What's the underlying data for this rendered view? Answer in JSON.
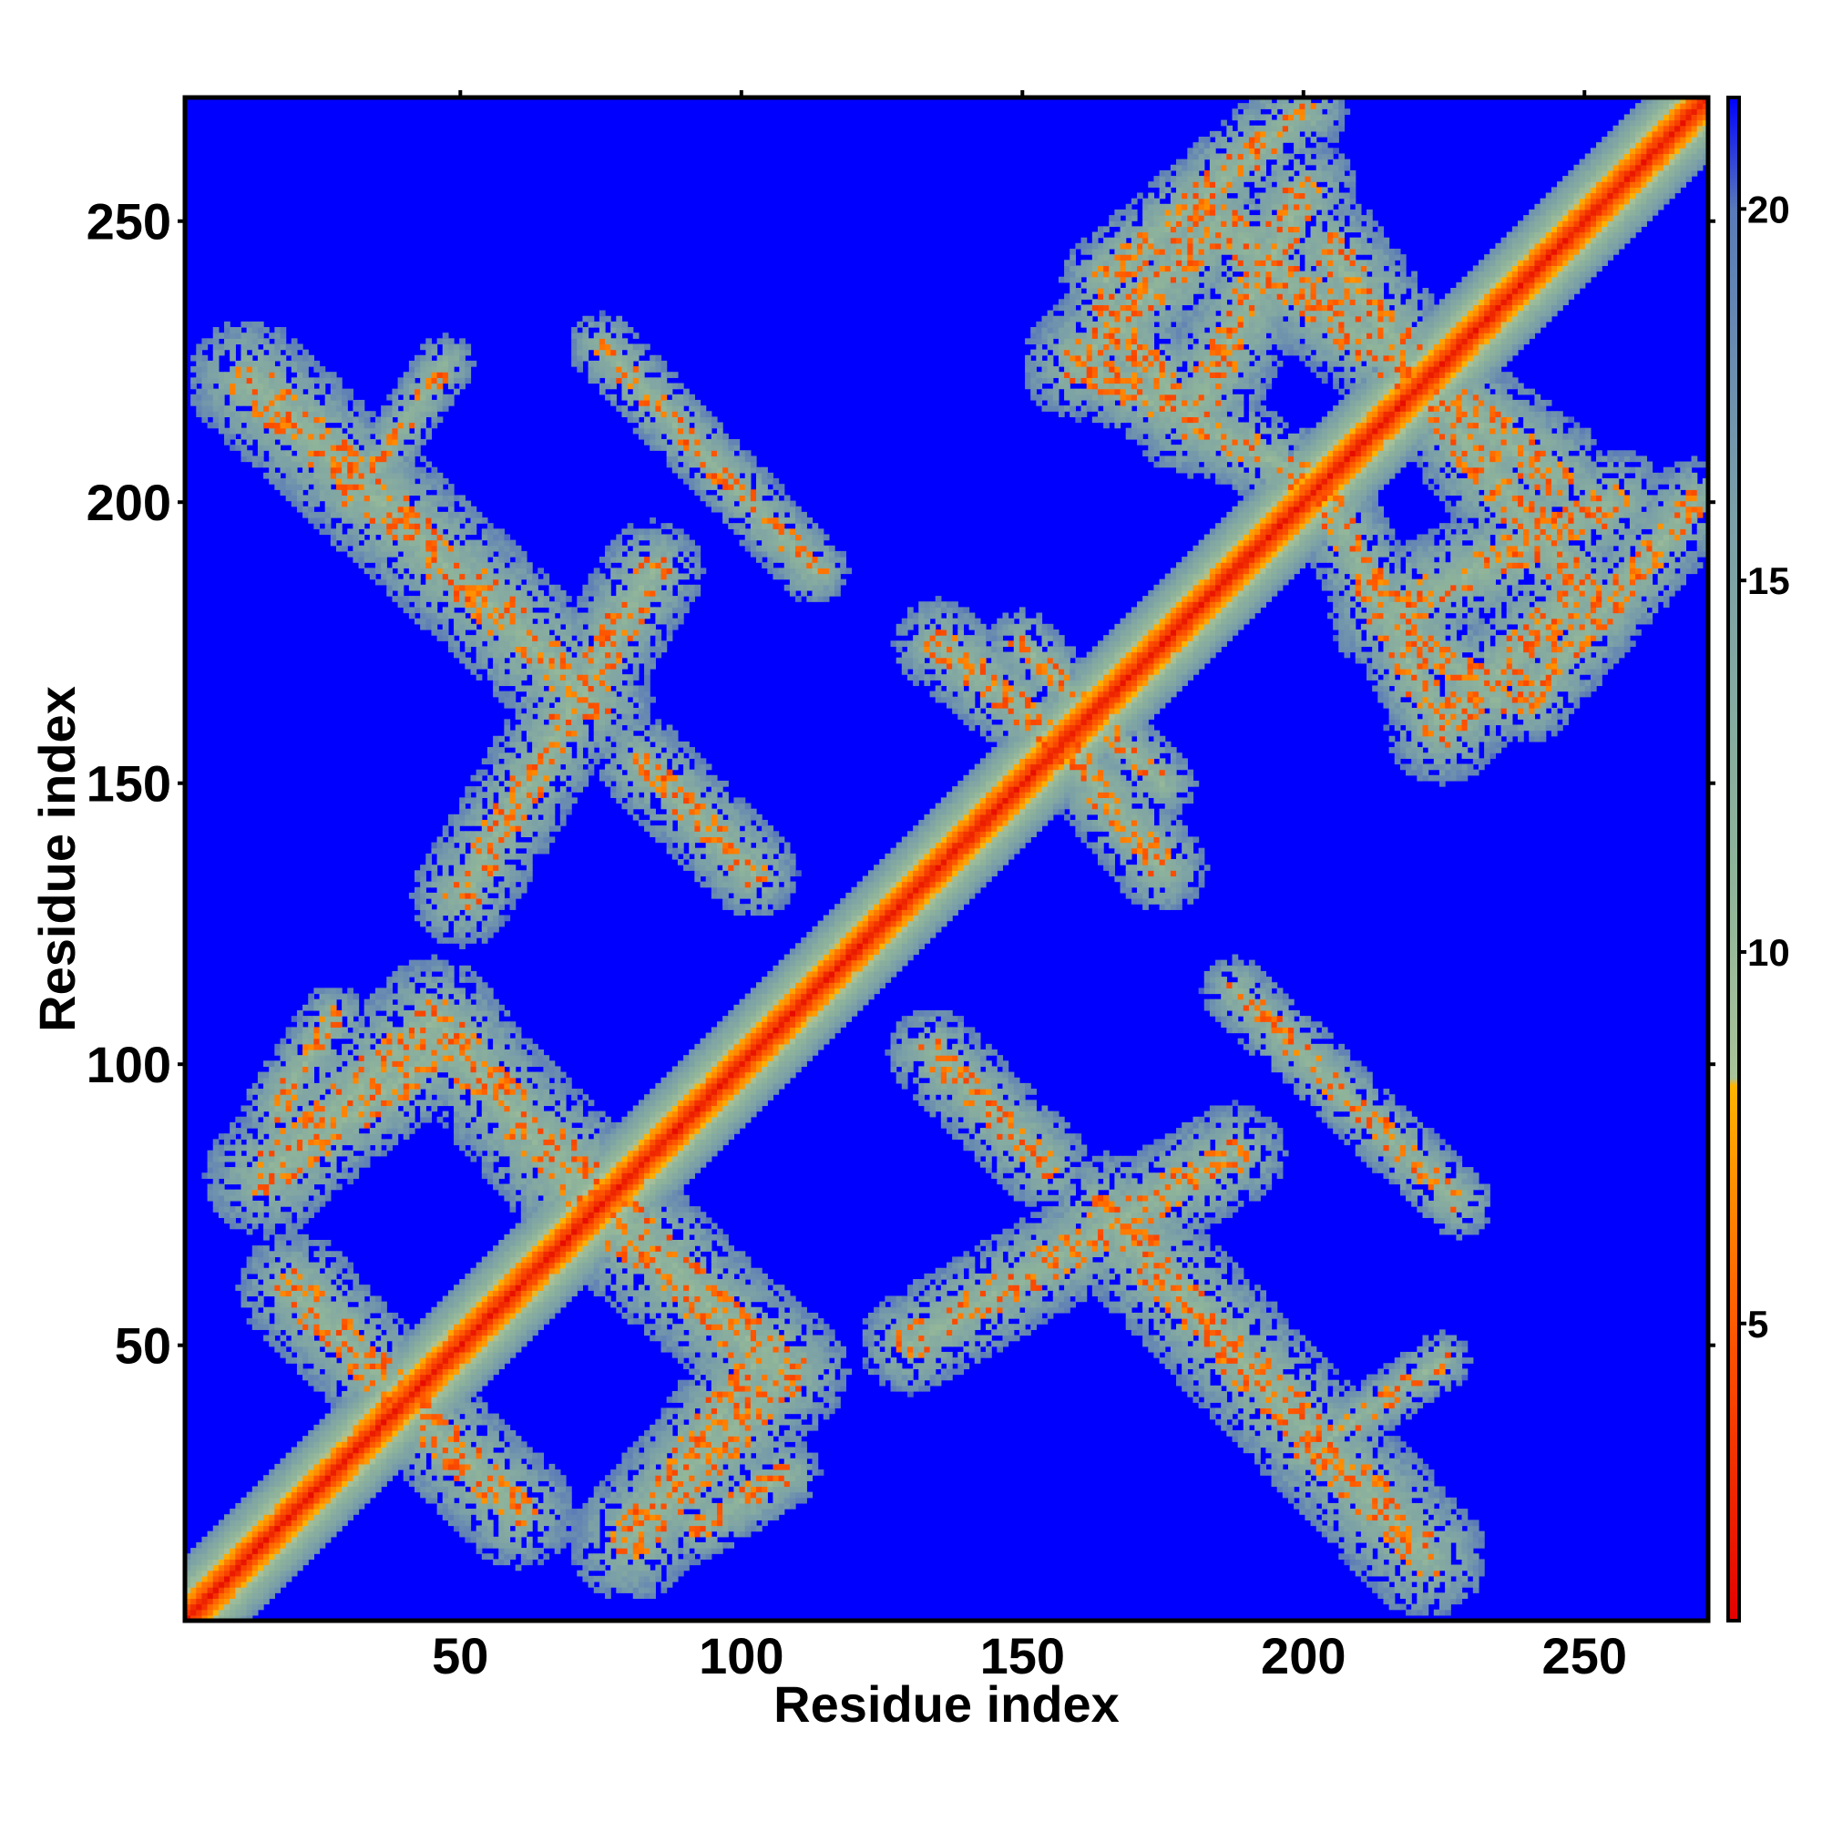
{
  "chart_data": {
    "type": "heatmap",
    "title": "",
    "xlabel": "Residue index",
    "ylabel": "Residue index",
    "xlim": [
      1,
      272
    ],
    "ylim": [
      1,
      272
    ],
    "x_ticks": [
      50,
      100,
      150,
      200,
      250
    ],
    "y_ticks": [
      50,
      100,
      150,
      200,
      250
    ],
    "x_tick_labels": [
      "50",
      "100",
      "150",
      "200",
      "250"
    ],
    "y_tick_labels": [
      "50",
      "100",
      "150",
      "200",
      "250"
    ],
    "colorbar": {
      "ticks": [
        5,
        10,
        15,
        20
      ],
      "tick_labels": [
        "5",
        "10",
        "15",
        "20"
      ],
      "range": [
        1,
        21.5
      ],
      "stops": [
        {
          "value": 1,
          "color": "#e30000"
        },
        {
          "value": 5,
          "color": "#ff5a00"
        },
        {
          "value": 8.2,
          "color": "#ffb400"
        },
        {
          "value": 8.3,
          "color": "#a9c39a"
        },
        {
          "value": 11,
          "color": "#8fb49a"
        },
        {
          "value": 16,
          "color": "#7a9fa8"
        },
        {
          "value": 20,
          "color": "#5a7ab8"
        },
        {
          "value": 21.5,
          "color": "#0000ff"
        }
      ]
    },
    "background_value": 21.5,
    "diagonal_contacts": {
      "from": 1,
      "to": 272,
      "half_width": 11
    },
    "contact_bands": [
      {
        "from": [
          12,
          222
        ],
        "to": [
          73,
          165
        ],
        "width": 11
      },
      {
        "from": [
          75,
          228
        ],
        "to": [
          113,
          188
        ],
        "width": 6
      },
      {
        "from": [
          50,
          130
        ],
        "to": [
          84,
          188
        ],
        "width": 9
      },
      {
        "from": [
          82,
          154
        ],
        "to": [
          102,
          134
        ],
        "width": 8
      },
      {
        "from": [
          30,
          200
        ],
        "to": [
          47,
          225
        ],
        "width": 5
      },
      {
        "from": [
          15,
          80
        ],
        "to": [
          44,
          107
        ],
        "width": 11
      },
      {
        "from": [
          44,
          107
        ],
        "to": [
          75,
          76
        ],
        "width": 11
      },
      {
        "from": [
          20,
          60
        ],
        "to": [
          44,
          35
        ],
        "width": 10
      },
      {
        "from": [
          73,
          74
        ],
        "to": [
          108,
          45
        ],
        "width": 11
      },
      {
        "from": [
          80,
          15
        ],
        "to": [
          105,
          50
        ],
        "width": 9
      },
      {
        "from": [
          17,
          92
        ],
        "to": [
          27,
          108
        ],
        "width": 6
      },
      {
        "from": [
          222,
          12
        ],
        "to": [
          165,
          73
        ],
        "width": 11
      },
      {
        "from": [
          228,
          75
        ],
        "to": [
          188,
          113
        ],
        "width": 6
      },
      {
        "from": [
          130,
          50
        ],
        "to": [
          188,
          84
        ],
        "width": 9
      },
      {
        "from": [
          154,
          82
        ],
        "to": [
          134,
          102
        ],
        "width": 8
      },
      {
        "from": [
          200,
          30
        ],
        "to": [
          225,
          47
        ],
        "width": 5
      },
      {
        "from": [
          80,
          15
        ],
        "to": [
          107,
          44
        ],
        "width": 11
      },
      {
        "from": [
          107,
          44
        ],
        "to": [
          76,
          75
        ],
        "width": 11
      },
      {
        "from": [
          60,
          20
        ],
        "to": [
          35,
          44
        ],
        "width": 10
      },
      {
        "from": [
          74,
          73
        ],
        "to": [
          45,
          108
        ],
        "width": 11
      },
      {
        "from": [
          15,
          80
        ],
        "to": [
          50,
          105
        ],
        "width": 9
      },
      {
        "from": [
          92,
          17
        ],
        "to": [
          108,
          27
        ],
        "width": 6
      },
      {
        "from": [
          165,
          240
        ],
        "to": [
          200,
          270
        ],
        "width": 8
      },
      {
        "from": [
          185,
          250
        ],
        "to": [
          210,
          230
        ],
        "width": 10
      },
      {
        "from": [
          160,
          225
        ],
        "to": [
          185,
          250
        ],
        "width": 10
      },
      {
        "from": [
          210,
          230
        ],
        "to": [
          245,
          205
        ],
        "width": 10
      },
      {
        "from": [
          215,
          180
        ],
        "to": [
          255,
          200
        ],
        "width": 10
      },
      {
        "from": [
          215,
          180
        ],
        "to": [
          235,
          165
        ],
        "width": 8
      },
      {
        "from": [
          160,
          225
        ],
        "to": [
          200,
          205
        ],
        "width": 8
      },
      {
        "from": [
          240,
          165
        ],
        "to": [
          270,
          200
        ],
        "width": 8
      },
      {
        "from": [
          250,
          185
        ],
        "to": [
          230,
          210
        ],
        "width": 10
      },
      {
        "from": [
          225,
          160
        ],
        "to": [
          250,
          185
        ],
        "width": 10
      },
      {
        "from": [
          230,
          210
        ],
        "to": [
          205,
          245
        ],
        "width": 10
      },
      {
        "from": [
          180,
          215
        ],
        "to": [
          200,
          255
        ],
        "width": 10
      },
      {
        "from": [
          180,
          215
        ],
        "to": [
          165,
          235
        ],
        "width": 8
      },
      {
        "from": [
          225,
          160
        ],
        "to": [
          205,
          200
        ],
        "width": 8
      },
      {
        "from": [
          135,
          175
        ],
        "to": [
          160,
          155
        ],
        "width": 8
      },
      {
        "from": [
          150,
          175
        ],
        "to": [
          175,
          150
        ],
        "width": 6
      },
      {
        "from": [
          175,
          135
        ],
        "to": [
          155,
          160
        ],
        "width": 8
      }
    ]
  }
}
